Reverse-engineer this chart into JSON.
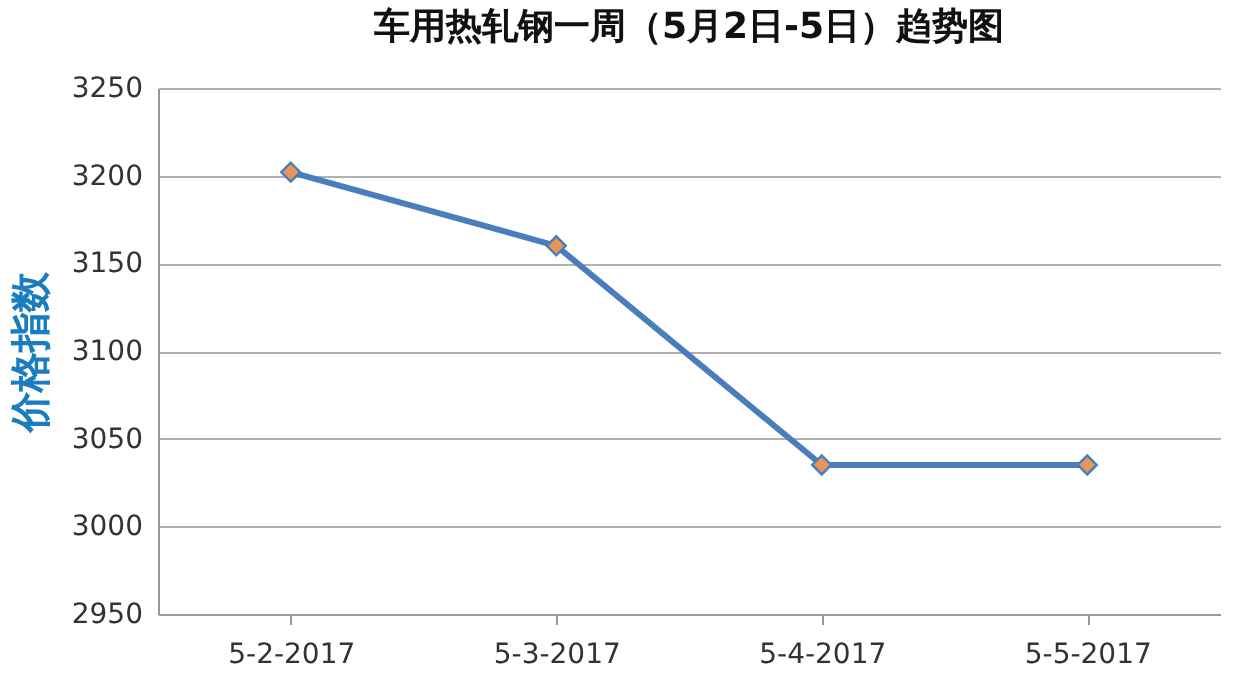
{
  "chart_data": {
    "type": "line",
    "title": "车用热轧钢一周（5月2日-5日）趋势图",
    "ylabel": "价格指数",
    "categories": [
      "5-2-2017",
      "5-3-2017",
      "5-4-2017",
      "5-5-2017"
    ],
    "series": [
      {
        "color": "#4a7ebb",
        "values": [
          3202,
          3160,
          3035,
          3035
        ]
      }
    ],
    "ylim": [
      2950,
      3250
    ],
    "yticks": [
      2950,
      3000,
      3050,
      3100,
      3150,
      3200,
      3250
    ],
    "grid": "y",
    "marker": "diamond",
    "line_style": "solid"
  }
}
